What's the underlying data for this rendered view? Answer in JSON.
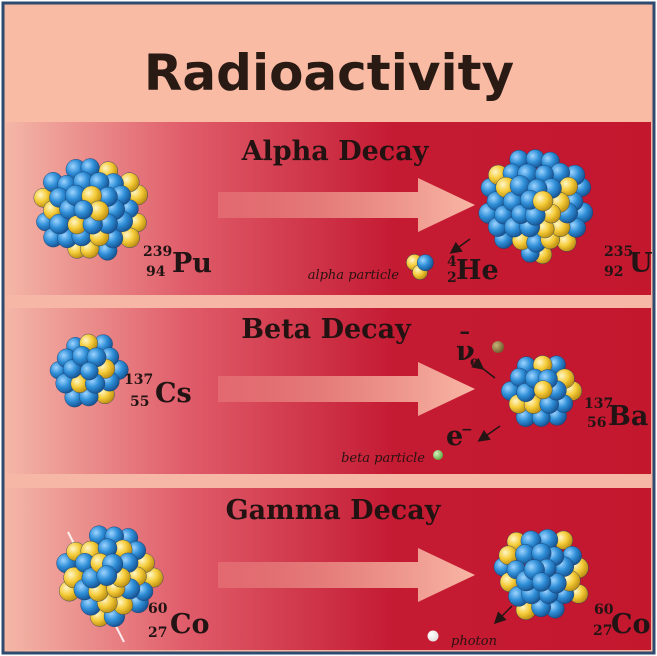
{
  "title": "Radioactivity",
  "colors": {
    "border": "#2e4a6e",
    "banner": "#f9b9a1",
    "band_light": "#f2b4a4",
    "band_dark": "#c01a30",
    "nucleon_blue": "#2a8bd3",
    "nucleon_yellow": "#f6cc3a",
    "arrow": "#f4ad9c"
  },
  "sections": {
    "alpha": {
      "heading": "Alpha Decay",
      "parent": {
        "mass": "239",
        "atomic": "94",
        "symbol": "Pu"
      },
      "daughter": {
        "mass": "235",
        "atomic": "92",
        "symbol": "U"
      },
      "emitted": {
        "mass": "4",
        "atomic": "2",
        "symbol": "He"
      },
      "particle_label": "alpha particle"
    },
    "beta": {
      "heading": "Beta Decay",
      "parent": {
        "mass": "137",
        "atomic": "55",
        "symbol": "Cs"
      },
      "daughter": {
        "mass": "137",
        "atomic": "56",
        "symbol": "Ba"
      },
      "neutrino": {
        "symbol": "ν",
        "subscript": "e",
        "bar": "¯"
      },
      "electron": {
        "symbol": "e",
        "charge": "−"
      },
      "particle_label": "beta particle"
    },
    "gamma": {
      "heading": "Gamma Decay",
      "parent": {
        "mass": "60",
        "atomic": "27",
        "symbol": "Co"
      },
      "daughter": {
        "mass": "60",
        "atomic": "27",
        "symbol": "Co"
      },
      "particle_label": "photon"
    }
  }
}
